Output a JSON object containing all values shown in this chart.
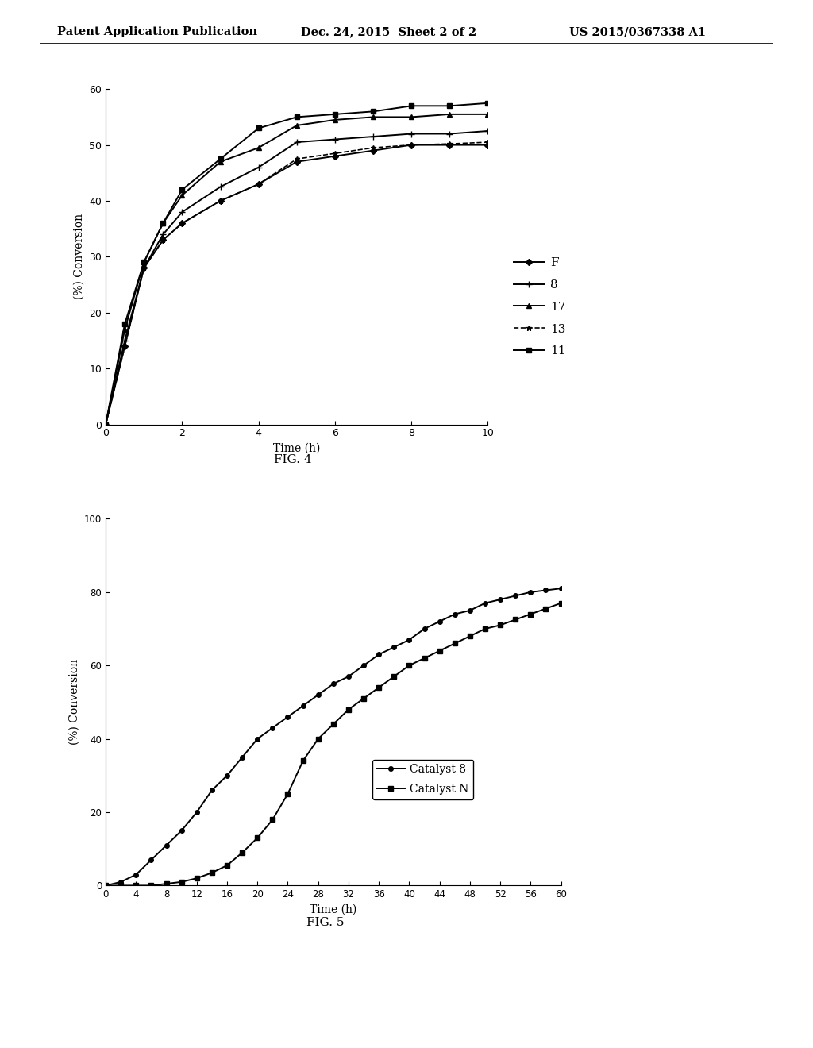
{
  "header_left": "Patent Application Publication",
  "header_mid": "Dec. 24, 2015  Sheet 2 of 2",
  "header_right": "US 2015/0367338 A1",
  "fig4": {
    "title": "FIG. 4",
    "xlabel": "Time (h)",
    "ylabel": "(%) Conversion",
    "xlim": [
      0,
      10
    ],
    "ylim": [
      0,
      60
    ],
    "xticks": [
      0,
      2,
      4,
      6,
      8,
      10
    ],
    "yticks": [
      0,
      10,
      20,
      30,
      40,
      50,
      60
    ],
    "F": {
      "x": [
        0,
        0.5,
        1,
        1.5,
        2,
        3,
        4,
        5,
        6,
        7,
        8,
        9,
        10
      ],
      "y": [
        0,
        14,
        28,
        33,
        36,
        40,
        43,
        47,
        48,
        49,
        50,
        50,
        50
      ]
    },
    "8": {
      "x": [
        0,
        0.5,
        1,
        1.5,
        2,
        3,
        4,
        5,
        6,
        7,
        8,
        9,
        10
      ],
      "y": [
        0,
        15,
        28,
        34,
        38,
        42.5,
        46,
        50.5,
        51,
        51.5,
        52,
        52,
        52.5
      ]
    },
    "17": {
      "x": [
        0,
        0.5,
        1,
        1.5,
        2,
        3,
        4,
        5,
        6,
        7,
        8,
        9,
        10
      ],
      "y": [
        0,
        17,
        29,
        36,
        41,
        47,
        49.5,
        53.5,
        54.5,
        55,
        55,
        55.5,
        55.5
      ]
    },
    "13": {
      "x": [
        0,
        0.5,
        1,
        1.5,
        2,
        3,
        4,
        5,
        6,
        7,
        8,
        9,
        10
      ],
      "y": [
        0,
        14,
        28,
        33,
        36,
        40,
        43,
        47.5,
        48.5,
        49.5,
        50,
        50.2,
        50.5
      ]
    },
    "11": {
      "x": [
        0,
        0.5,
        1,
        1.5,
        2,
        3,
        4,
        5,
        6,
        7,
        8,
        9,
        10
      ],
      "y": [
        0,
        18,
        29,
        36,
        42,
        47.5,
        53,
        55,
        55.5,
        56,
        57,
        57,
        57.5
      ]
    }
  },
  "fig5": {
    "title": "FIG. 5",
    "xlabel": "Time (h)",
    "ylabel": "(%) Conversion",
    "xlim": [
      0,
      60
    ],
    "ylim": [
      0,
      100
    ],
    "xticks": [
      0,
      4,
      8,
      12,
      16,
      20,
      24,
      28,
      32,
      36,
      40,
      44,
      48,
      52,
      56,
      60
    ],
    "yticks": [
      0,
      20,
      40,
      60,
      80,
      100
    ],
    "cat8_x": [
      0,
      2,
      4,
      6,
      8,
      10,
      12,
      14,
      16,
      18,
      20,
      22,
      24,
      26,
      28,
      30,
      32,
      34,
      36,
      38,
      40,
      42,
      44,
      46,
      48,
      50,
      52,
      54,
      56,
      58,
      60
    ],
    "cat8_y": [
      0,
      1,
      3,
      7,
      11,
      15,
      20,
      26,
      30,
      35,
      40,
      43,
      46,
      49,
      52,
      55,
      57,
      60,
      63,
      65,
      67,
      70,
      72,
      74,
      75,
      77,
      78,
      79,
      80,
      80.5,
      81
    ],
    "catn_x": [
      0,
      2,
      4,
      6,
      8,
      10,
      12,
      14,
      16,
      18,
      20,
      22,
      24,
      26,
      28,
      30,
      32,
      34,
      36,
      38,
      40,
      42,
      44,
      46,
      48,
      50,
      52,
      54,
      56,
      58,
      60
    ],
    "catn_y": [
      0,
      0,
      0,
      0,
      0.5,
      1,
      2,
      3.5,
      5.5,
      9,
      13,
      18,
      25,
      34,
      40,
      44,
      48,
      51,
      54,
      57,
      60,
      62,
      64,
      66,
      68,
      70,
      71,
      72.5,
      74,
      75.5,
      77
    ]
  },
  "background_color": "#ffffff"
}
